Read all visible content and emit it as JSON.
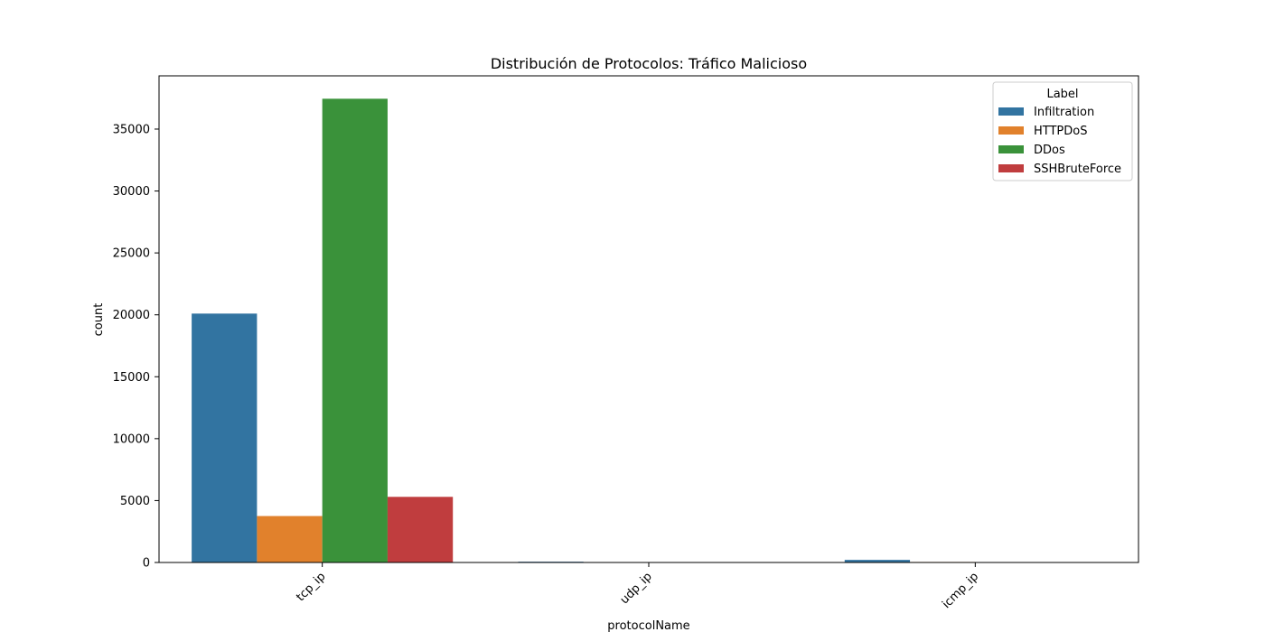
{
  "chart_data": {
    "type": "bar",
    "title": "Distribución de Protocolos: Tráfico Malicioso",
    "xlabel": "protocolName",
    "ylabel": "count",
    "categories": [
      "tcp_ip",
      "udp_ip",
      "icmp_ip"
    ],
    "series": [
      {
        "name": "Infiltration",
        "color": "#3274a1",
        "values": [
          20100,
          60,
          210
        ]
      },
      {
        "name": "HTTPDoS",
        "color": "#e1812c",
        "values": [
          3750,
          0,
          40
        ]
      },
      {
        "name": "DDos",
        "color": "#3a923a",
        "values": [
          37450,
          0,
          0
        ]
      },
      {
        "name": "SSHBruteForce",
        "color": "#c03d3e",
        "values": [
          5300,
          0,
          0
        ]
      }
    ],
    "ylim": [
      0,
      39300
    ],
    "yticks": [
      0,
      5000,
      10000,
      15000,
      20000,
      25000,
      30000,
      35000
    ],
    "x_tick_rotation": -45,
    "grid": false,
    "legend": {
      "title": "Label",
      "placement": "top-right"
    }
  }
}
